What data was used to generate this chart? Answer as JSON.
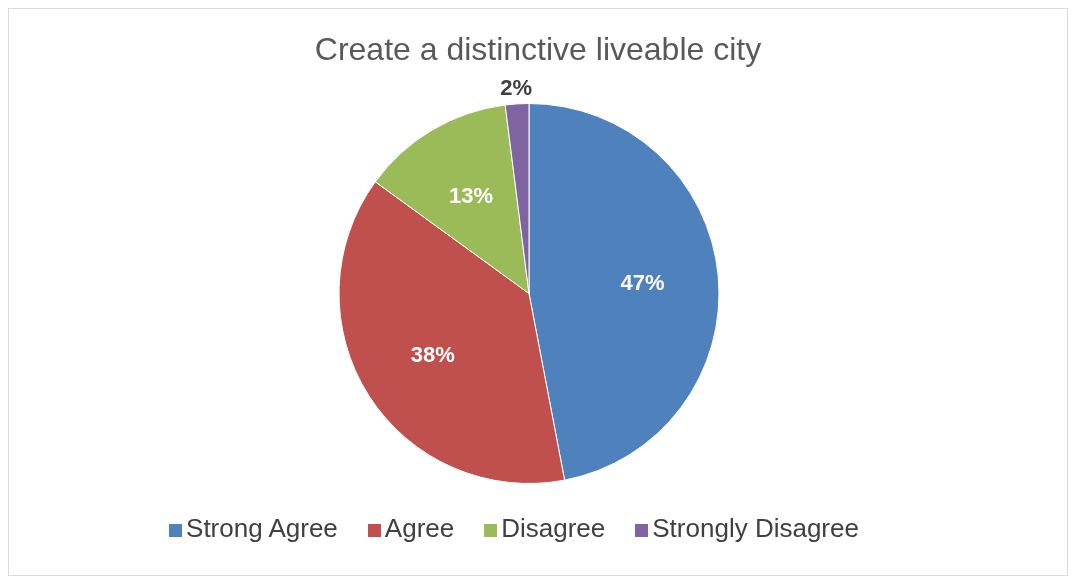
{
  "chart_data": {
    "type": "pie",
    "title": "Create a distinctive liveable city",
    "categories": [
      "Strong Agree",
      "Agree",
      "Disagree",
      "Strongly Disagree"
    ],
    "values": [
      47,
      38,
      13,
      2
    ],
    "colors": [
      "#4f81bd",
      "#c0504d",
      "#9bbb59",
      "#8064a2"
    ],
    "value_labels": [
      "47%",
      "38%",
      "13%",
      "2%"
    ],
    "legend": "bottom"
  }
}
